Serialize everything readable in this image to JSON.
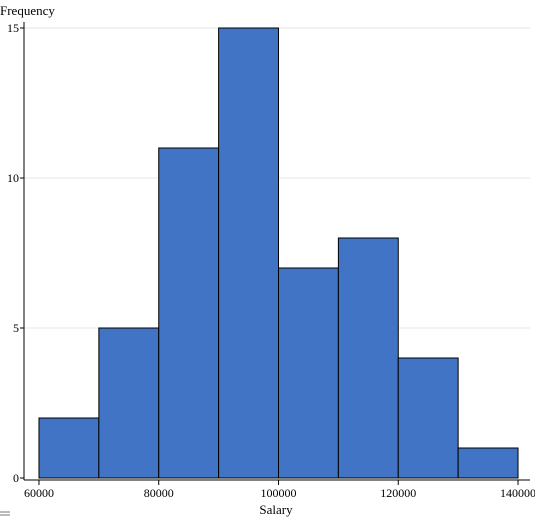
{
  "chart_data": {
    "type": "bar",
    "subtype": "histogram",
    "bin_edges": [
      60000,
      70000,
      80000,
      90000,
      100000,
      110000,
      120000,
      130000,
      140000
    ],
    "values": [
      2,
      5,
      11,
      15,
      7,
      8,
      4,
      1
    ],
    "xlabel": "Salary",
    "ylabel": "Frequency",
    "xlim": [
      57500,
      142000
    ],
    "ylim": [
      0,
      15
    ],
    "x_ticks": [
      60000,
      80000,
      100000,
      120000,
      140000
    ],
    "y_ticks": [
      0,
      5,
      10,
      15
    ],
    "bar_color": "#4174c5",
    "grid": true,
    "legend": "none"
  }
}
